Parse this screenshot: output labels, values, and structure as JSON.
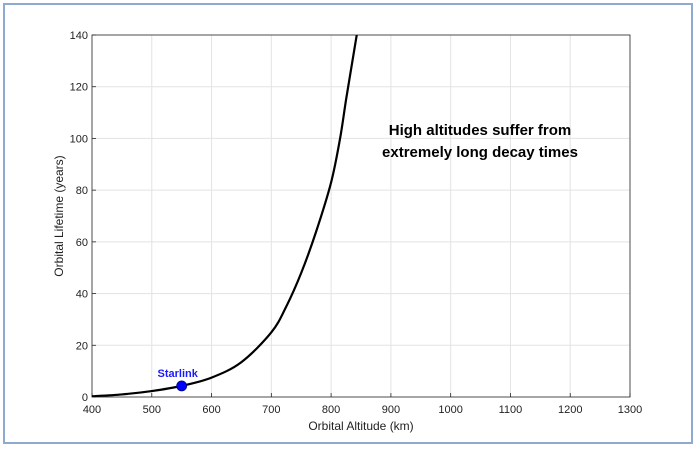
{
  "chart_data": {
    "type": "line",
    "title": "",
    "xlabel": "Orbital Altitude (km)",
    "ylabel": "Orbital Lifetime (years)",
    "xlim": [
      400,
      1300
    ],
    "ylim": [
      0,
      140
    ],
    "x_ticks": [
      400,
      500,
      600,
      700,
      800,
      900,
      1000,
      1100,
      1200,
      1300
    ],
    "y_ticks": [
      0,
      20,
      40,
      60,
      80,
      100,
      120,
      140
    ],
    "grid": true,
    "series": [
      {
        "color": "#000000",
        "x": [
          400,
          450,
          500,
          550,
          600,
          650,
          700,
          725,
          750,
          775,
          800,
          815,
          825,
          835,
          845
        ],
        "y": [
          0.3,
          1.0,
          2.3,
          4.3,
          7.5,
          13.5,
          25,
          35,
          48,
          64,
          83,
          100,
          115,
          129,
          143
        ]
      }
    ],
    "points": [
      {
        "label": "Starlink",
        "x": 550,
        "y": 4.3,
        "color": "#0000ff"
      }
    ],
    "annotations": [
      {
        "lines": [
          "High altitudes suffer from",
          "extremely long decay times"
        ]
      }
    ]
  }
}
